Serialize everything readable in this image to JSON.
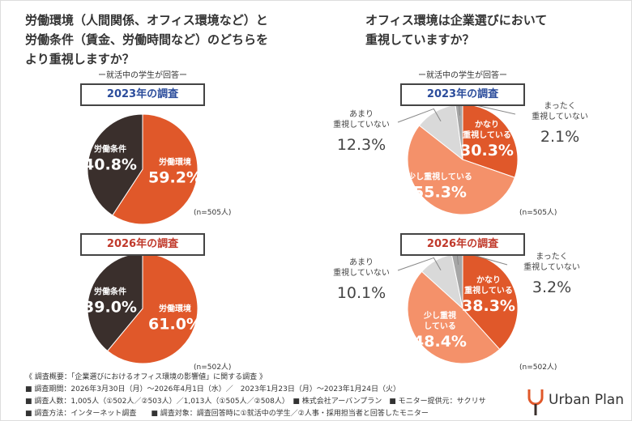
{
  "panels": [
    {
      "title": [
        "労働環境（人間関係、オフィス環境など）と",
        "労働条件（賃金、労働時間など）のどちらを",
        "より重視しますか？"
      ],
      "note": "ー就活中の学生が回答ー"
    },
    {
      "title": [
        "オフィス環境は企業選びにおいて",
        "重視していますか？"
      ],
      "note": "ー就活中の学生が回答ー"
    }
  ],
  "chart_data": [
    {
      "type": "pie",
      "title": "2023年の調査",
      "title_color": "#2b4c9b",
      "categories": [
        "労働環境",
        "労働条件"
      ],
      "values": [
        59.2,
        40.8
      ],
      "value_labels": [
        "59.2%",
        "40.8%"
      ],
      "colors": [
        "#e0582a",
        "#3a2f2c"
      ],
      "sample": "(n=505人)"
    },
    {
      "type": "pie",
      "title": "2026年の調査",
      "title_color": "#c0392b",
      "categories": [
        "労働環境",
        "労働条件"
      ],
      "values": [
        61.0,
        39.0
      ],
      "value_labels": [
        "61.0%",
        "39.0%"
      ],
      "colors": [
        "#e0582a",
        "#3a2f2c"
      ],
      "sample": "(n=502人)"
    },
    {
      "type": "pie",
      "title": "2023年の調査",
      "title_color": "#2b4c9b",
      "categories": [
        "かなり\n重視している",
        "少し重視している",
        "あまり\n重視していない",
        "まったく\n重視していない"
      ],
      "values": [
        30.3,
        55.3,
        12.3,
        2.1
      ],
      "value_labels": [
        "30.3%",
        "55.3%",
        "12.3%",
        "2.1%"
      ],
      "colors": [
        "#e0582a",
        "#f4916a",
        "#d9d9d9",
        "#a6a6a6"
      ],
      "sample": "(n=505人)"
    },
    {
      "type": "pie",
      "title": "2026年の調査",
      "title_color": "#c0392b",
      "categories": [
        "かなり\n重視している",
        "少し重視\nしている",
        "あまり\n重視していない",
        "まったく\n重視していない"
      ],
      "values": [
        38.3,
        48.4,
        10.1,
        3.2
      ],
      "value_labels": [
        "38.3%",
        "48.4%",
        "10.1%",
        "3.2%"
      ],
      "colors": [
        "#e0582a",
        "#f4916a",
        "#d9d9d9",
        "#a6a6a6"
      ],
      "sample": "(n=502人)"
    }
  ],
  "footer": [
    "《 調査概要：「企業選びにおけるオフィス環境の影響値」に関する調査 》",
    "■ 調査期間：2026年3月30日（月）～2026年4月1日（水）／　2023年1月23日（月）～2023年1月24日（火）",
    "■ 調査人数：1,005人（①502人／②503人）／1,013人（①505人／②508人）　■ 株式会社アーバンプラン　■ モニター提供元：サクリサ",
    "■ 調査方法：インターネット調査　　■ 調査対象：調査回答時に①就活中の学生／②人事・採用担当者と回答したモニター"
  ],
  "logo": "Urban Plan"
}
